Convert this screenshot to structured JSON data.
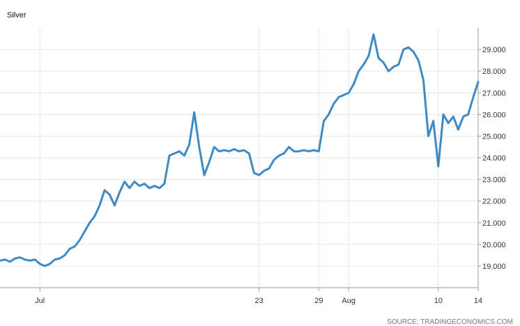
{
  "chart_data": {
    "type": "line",
    "title": "Silver",
    "source": "SOURCE: TRADINGECONOMICS.COM",
    "line_color": "#3d8ac6",
    "grid": true,
    "ylim": [
      18000,
      30000
    ],
    "y_ticks": [
      {
        "value": 19000,
        "label": "19.000"
      },
      {
        "value": 20000,
        "label": "20.000"
      },
      {
        "value": 21000,
        "label": "21.000"
      },
      {
        "value": 22000,
        "label": "22.000"
      },
      {
        "value": 23000,
        "label": "23.000"
      },
      {
        "value": 24000,
        "label": "24.000"
      },
      {
        "value": 25000,
        "label": "25.000"
      },
      {
        "value": 26000,
        "label": "26.000"
      },
      {
        "value": 27000,
        "label": "27.000"
      },
      {
        "value": 28000,
        "label": "28.000"
      },
      {
        "value": 29000,
        "label": "29.000"
      }
    ],
    "xlim": [
      "2020-06-27",
      "2020-08-14"
    ],
    "x_ticks": [
      {
        "date": "2020-07-01",
        "label": "Jul"
      },
      {
        "date": "2020-07-23",
        "label": "23"
      },
      {
        "date": "2020-07-29",
        "label": "29"
      },
      {
        "date": "2020-08-01",
        "label": "Aug"
      },
      {
        "date": "2020-08-10",
        "label": "10"
      },
      {
        "date": "2020-08-14",
        "label": "14"
      }
    ],
    "series": [
      {
        "points": [
          [
            "2020-06-27T00:00",
            19250
          ],
          [
            "2020-06-27T12:00",
            19300
          ],
          [
            "2020-06-28T00:00",
            19200
          ],
          [
            "2020-06-28T12:00",
            19350
          ],
          [
            "2020-06-29T00:00",
            19400
          ],
          [
            "2020-06-29T12:00",
            19300
          ],
          [
            "2020-06-30T00:00",
            19250
          ],
          [
            "2020-06-30T12:00",
            19300
          ],
          [
            "2020-07-01T00:00",
            19100
          ],
          [
            "2020-07-01T12:00",
            19000
          ],
          [
            "2020-07-02T00:00",
            19100
          ],
          [
            "2020-07-02T12:00",
            19300
          ],
          [
            "2020-07-03T00:00",
            19350
          ],
          [
            "2020-07-03T12:00",
            19500
          ],
          [
            "2020-07-04T00:00",
            19800
          ],
          [
            "2020-07-04T12:00",
            19900
          ],
          [
            "2020-07-05T00:00",
            20200
          ],
          [
            "2020-07-05T12:00",
            20600
          ],
          [
            "2020-07-06T00:00",
            21000
          ],
          [
            "2020-07-06T12:00",
            21300
          ],
          [
            "2020-07-07T00:00",
            21800
          ],
          [
            "2020-07-07T12:00",
            22500
          ],
          [
            "2020-07-08T00:00",
            22300
          ],
          [
            "2020-07-08T12:00",
            21800
          ],
          [
            "2020-07-09T00:00",
            22400
          ],
          [
            "2020-07-09T12:00",
            22900
          ],
          [
            "2020-07-10T00:00",
            22600
          ],
          [
            "2020-07-10T12:00",
            22900
          ],
          [
            "2020-07-11T00:00",
            22700
          ],
          [
            "2020-07-11T12:00",
            22800
          ],
          [
            "2020-07-12T00:00",
            22600
          ],
          [
            "2020-07-12T12:00",
            22700
          ],
          [
            "2020-07-13T00:00",
            22600
          ],
          [
            "2020-07-13T12:00",
            22800
          ],
          [
            "2020-07-14T00:00",
            24100
          ],
          [
            "2020-07-14T12:00",
            24200
          ],
          [
            "2020-07-15T00:00",
            24300
          ],
          [
            "2020-07-15T12:00",
            24100
          ],
          [
            "2020-07-16T00:00",
            24600
          ],
          [
            "2020-07-16T12:00",
            26100
          ],
          [
            "2020-07-17T00:00",
            24500
          ],
          [
            "2020-07-17T12:00",
            23200
          ],
          [
            "2020-07-18T00:00",
            23800
          ],
          [
            "2020-07-18T12:00",
            24500
          ],
          [
            "2020-07-19T00:00",
            24300
          ],
          [
            "2020-07-19T12:00",
            24350
          ],
          [
            "2020-07-20T00:00",
            24300
          ],
          [
            "2020-07-20T12:00",
            24400
          ],
          [
            "2020-07-21T00:00",
            24300
          ],
          [
            "2020-07-21T12:00",
            24350
          ],
          [
            "2020-07-22T00:00",
            24200
          ],
          [
            "2020-07-22T12:00",
            23300
          ],
          [
            "2020-07-23T00:00",
            23200
          ],
          [
            "2020-07-23T12:00",
            23400
          ],
          [
            "2020-07-24T00:00",
            23500
          ],
          [
            "2020-07-24T12:00",
            23900
          ],
          [
            "2020-07-25T00:00",
            24100
          ],
          [
            "2020-07-25T12:00",
            24200
          ],
          [
            "2020-07-26T00:00",
            24500
          ],
          [
            "2020-07-26T12:00",
            24300
          ],
          [
            "2020-07-27T00:00",
            24300
          ],
          [
            "2020-07-27T12:00",
            24350
          ],
          [
            "2020-07-28T00:00",
            24300
          ],
          [
            "2020-07-28T12:00",
            24350
          ],
          [
            "2020-07-29T00:00",
            24300
          ],
          [
            "2020-07-29T12:00",
            25700
          ],
          [
            "2020-07-30T00:00",
            26000
          ],
          [
            "2020-07-30T12:00",
            26500
          ],
          [
            "2020-07-31T00:00",
            26800
          ],
          [
            "2020-07-31T12:00",
            26900
          ],
          [
            "2020-08-01T00:00",
            27000
          ],
          [
            "2020-08-01T12:00",
            27400
          ],
          [
            "2020-08-02T00:00",
            28000
          ],
          [
            "2020-08-02T12:00",
            28300
          ],
          [
            "2020-08-03T00:00",
            28700
          ],
          [
            "2020-08-03T12:00",
            29700
          ],
          [
            "2020-08-04T00:00",
            28600
          ],
          [
            "2020-08-04T12:00",
            28400
          ],
          [
            "2020-08-05T00:00",
            28000
          ],
          [
            "2020-08-05T12:00",
            28200
          ],
          [
            "2020-08-06T00:00",
            28300
          ],
          [
            "2020-08-06T12:00",
            29000
          ],
          [
            "2020-08-07T00:00",
            29100
          ],
          [
            "2020-08-07T12:00",
            28900
          ],
          [
            "2020-08-08T00:00",
            28500
          ],
          [
            "2020-08-08T12:00",
            27600
          ],
          [
            "2020-08-09T00:00",
            25000
          ],
          [
            "2020-08-09T12:00",
            25700
          ],
          [
            "2020-08-10T00:00",
            23600
          ],
          [
            "2020-08-10T12:00",
            26000
          ],
          [
            "2020-08-11T00:00",
            25600
          ],
          [
            "2020-08-11T12:00",
            25900
          ],
          [
            "2020-08-12T00:00",
            25300
          ],
          [
            "2020-08-12T12:00",
            25900
          ],
          [
            "2020-08-13T00:00",
            26000
          ],
          [
            "2020-08-13T12:00",
            26800
          ],
          [
            "2020-08-14T00:00",
            27500
          ]
        ]
      }
    ]
  }
}
